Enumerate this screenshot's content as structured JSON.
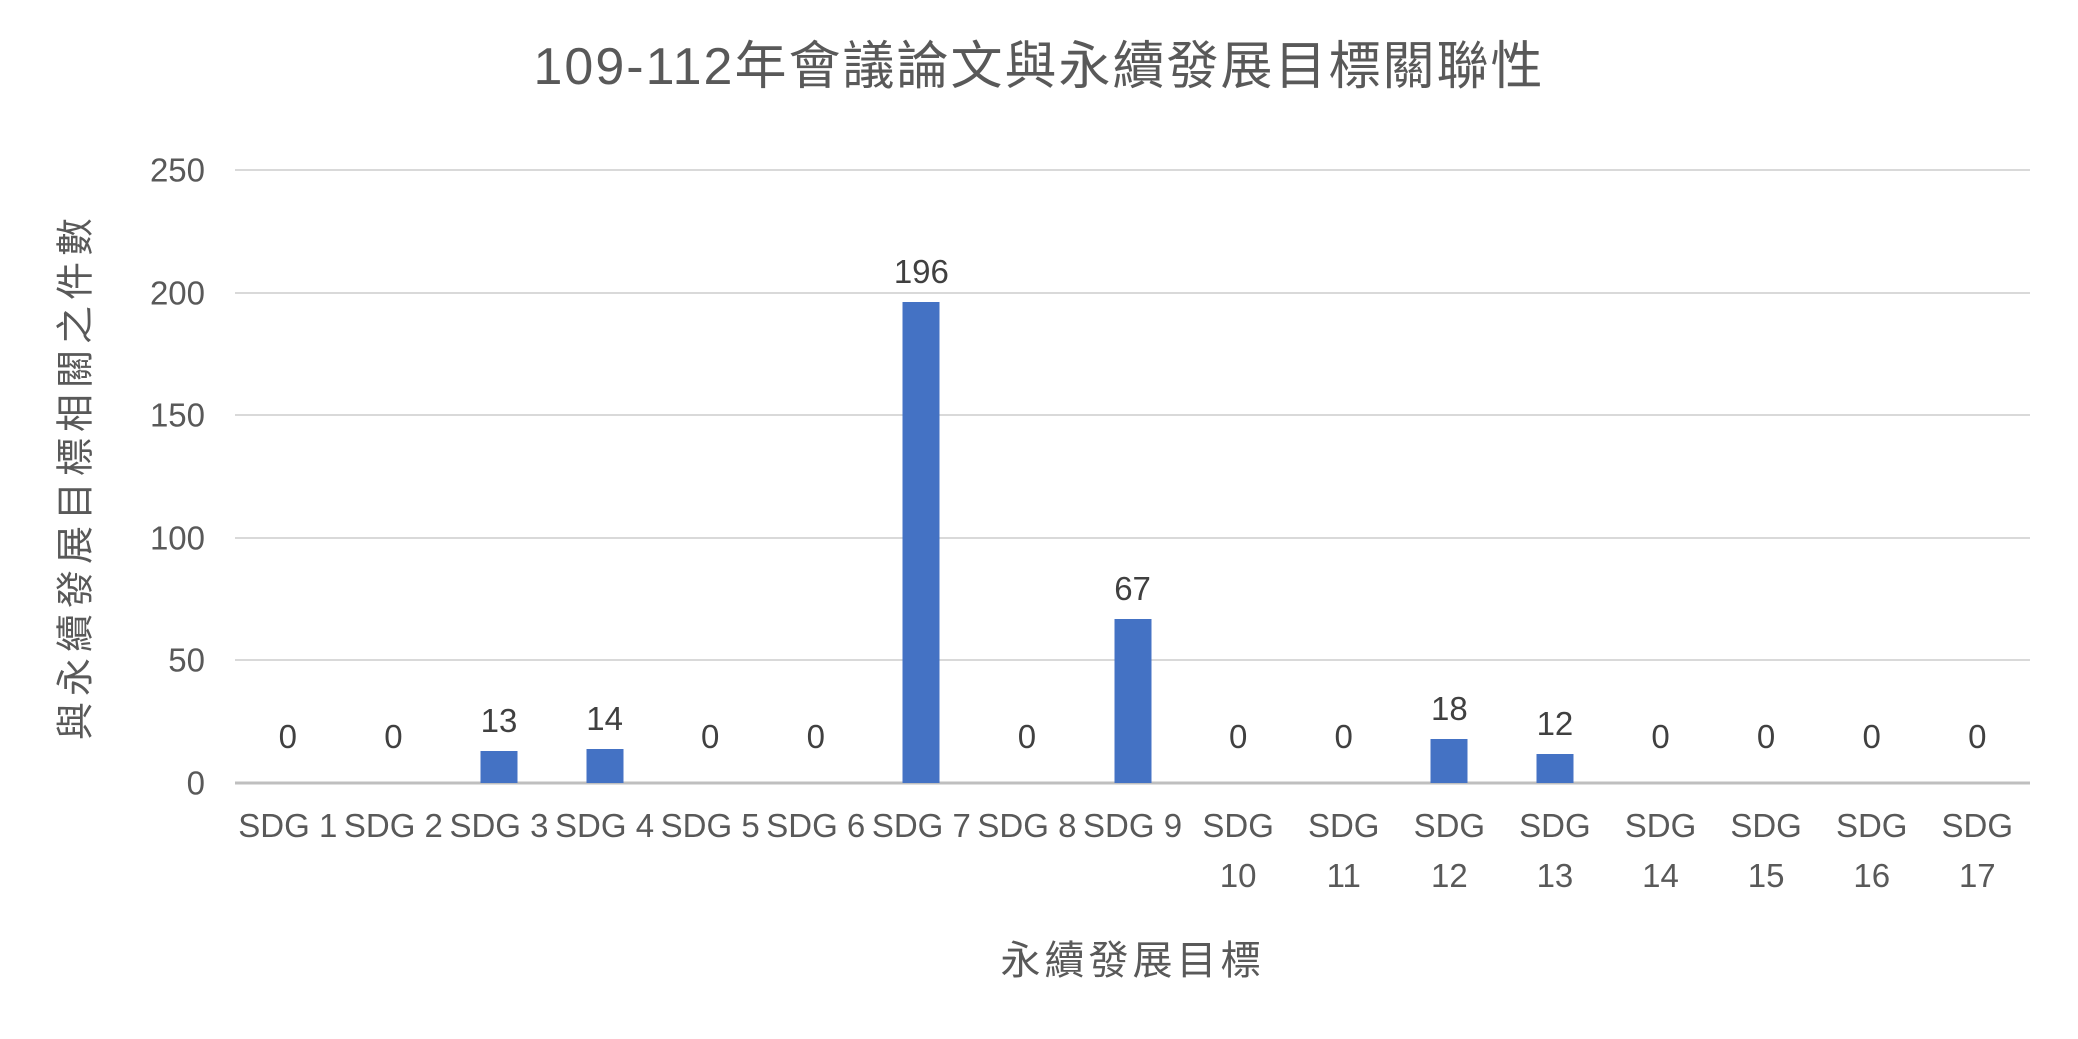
{
  "chart_data": {
    "type": "bar",
    "title": "109-112年會議論文與永續發展目標關聯性",
    "xlabel": "永續發展目標",
    "ylabel": "與永續發展目標相關之件數",
    "categories": [
      "SDG 1",
      "SDG 2",
      "SDG 3",
      "SDG 4",
      "SDG 5",
      "SDG 6",
      "SDG 7",
      "SDG 8",
      "SDG 9",
      "SDG 10",
      "SDG 11",
      "SDG 12",
      "SDG 13",
      "SDG 14",
      "SDG 15",
      "SDG 16",
      "SDG 17"
    ],
    "values": [
      0,
      0,
      13,
      14,
      0,
      0,
      196,
      0,
      67,
      0,
      0,
      18,
      12,
      0,
      0,
      0,
      0
    ],
    "y_ticks": [
      0,
      50,
      100,
      150,
      200,
      250
    ],
    "ylim": [
      0,
      250
    ],
    "ytick_step": 50,
    "grid": true,
    "legend": "none",
    "data_labels": "outside-end",
    "bar_color": "#4472C4"
  },
  "colors": {
    "background": "#FFFFFF",
    "bar": "#4472C4",
    "title_text": "#595959",
    "axis_text": "#595959",
    "data_label_text": "#404040",
    "gridline": "#D9D9D9",
    "axis_line": "#BFBFBF"
  }
}
